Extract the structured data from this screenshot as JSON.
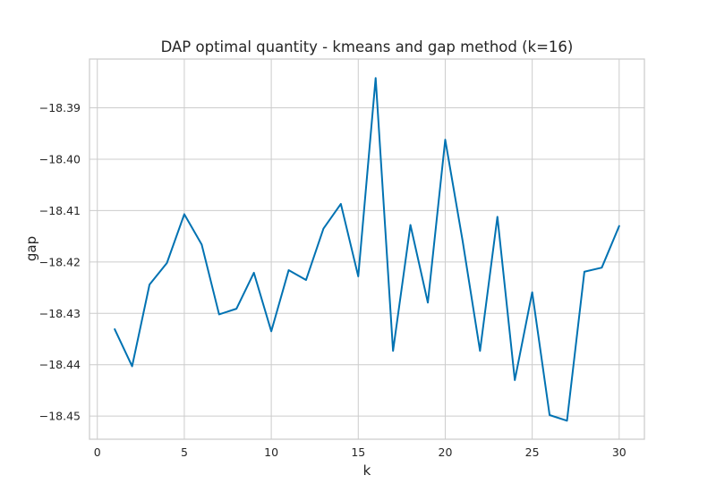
{
  "chart_data": {
    "type": "line",
    "title": "DAP optimal quantity - kmeans and gap method (k=16)",
    "xlabel": "k",
    "ylabel": "gap",
    "xlim": [
      -0.45,
      31.45
    ],
    "ylim": [
      -18.4545,
      -18.3805
    ],
    "x_ticks": [
      0,
      5,
      10,
      15,
      20,
      25,
      30
    ],
    "y_ticks": [
      -18.39,
      -18.4,
      -18.41,
      -18.42,
      -18.43,
      -18.44,
      -18.45
    ],
    "y_tick_labels": [
      "−18.39",
      "−18.40",
      "−18.41",
      "−18.42",
      "−18.43",
      "−18.44",
      "−18.45"
    ],
    "grid": true,
    "legend": null,
    "series": [
      {
        "color": "#0072b2",
        "x": [
          1,
          2,
          3,
          4,
          5,
          6,
          7,
          8,
          9,
          10,
          11,
          12,
          13,
          14,
          15,
          16,
          17,
          18,
          19,
          20,
          21,
          22,
          23,
          24,
          25,
          26,
          27,
          28,
          29,
          30
        ],
        "y": [
          -18.4331,
          -18.4403,
          -18.4244,
          -18.4202,
          -18.4107,
          -18.4166,
          -18.4302,
          -18.4291,
          -18.4221,
          -18.4335,
          -18.4216,
          -18.4235,
          -18.4135,
          -18.4087,
          -18.4228,
          -18.3842,
          -18.4373,
          -18.4128,
          -18.4279,
          -18.3962,
          -18.4159,
          -18.4373,
          -18.4112,
          -18.443,
          -18.4259,
          -18.4498,
          -18.4509,
          -18.4219,
          -18.4211,
          -18.413
        ]
      }
    ]
  }
}
